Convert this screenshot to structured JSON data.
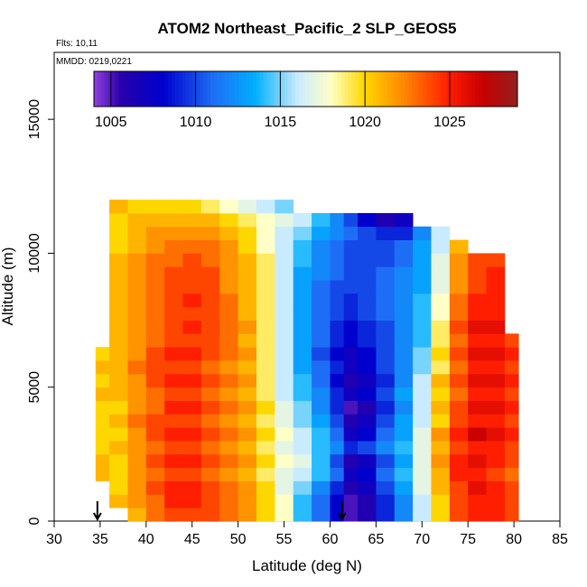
{
  "chart_data": {
    "type": "heatmap",
    "title": "ATOM2 Northeast_Pacific_2 SLP_GEOS5",
    "annotations": {
      "flights": "Flts: 10,11",
      "dates": "MMDD: 0219,0221"
    },
    "xlabel": "Latitude (deg N)",
    "ylabel": "Altitude (m)",
    "xlim": [
      30,
      85
    ],
    "ylim": [
      0,
      17500
    ],
    "xticks": [
      "30",
      "35",
      "40",
      "45",
      "50",
      "55",
      "60",
      "65",
      "70",
      "75",
      "80",
      "85"
    ],
    "yticks": [
      "0",
      "5000",
      "10000",
      "15000"
    ],
    "colorbar": {
      "range": [
        1004,
        1029
      ],
      "ticks": [
        "1005",
        "1010",
        "1015",
        "1020",
        "1025"
      ]
    },
    "arrows_at_latitude": [
      34.7,
      61.3
    ],
    "latitude_bins": [
      34.5,
      36,
      38,
      40,
      42,
      44,
      46,
      48,
      50,
      52,
      54,
      56,
      58,
      60,
      61.5,
      63,
      65,
      67,
      69,
      71,
      73,
      75,
      77,
      79,
      80.5
    ],
    "altitude_bins": [
      0,
      500,
      1000,
      1500,
      2000,
      2500,
      3000,
      3500,
      4000,
      4500,
      5000,
      5500,
      6000,
      6500,
      7000,
      7500,
      8000,
      8500,
      9000,
      9500,
      10000,
      10500,
      11000,
      11500,
      12000
    ],
    "slp_hpa_by_altitude_bin": [
      [
        null,
        null,
        1021,
        1023,
        1024,
        1024,
        1024,
        1023,
        1022,
        1020,
        1018,
        1014,
        1011,
        1008,
        1005,
        1006,
        1009,
        1012,
        1016,
        1020,
        1024,
        1025,
        1025,
        1024
      ],
      [
        null,
        1021,
        1022,
        1023,
        1025,
        1025,
        1024,
        1023,
        1022,
        1020,
        1018,
        1014,
        1011,
        1008,
        1005,
        1006,
        1009,
        1012,
        1016,
        1020,
        1024,
        1025,
        1025,
        1024
      ],
      [
        null,
        1020,
        1022,
        1024,
        1025,
        1025,
        1024,
        1023,
        1022,
        1020,
        1017,
        1015,
        1012,
        1009,
        1006,
        1007,
        1010,
        1013,
        1017,
        1021,
        1024,
        1026,
        1025,
        1024
      ],
      [
        1021,
        1020,
        1022,
        1023,
        1024,
        1024,
        1023,
        1022,
        1021,
        1019,
        1017,
        1016,
        1014,
        1011,
        1007,
        1008,
        1011,
        1014,
        1017,
        1021,
        1025,
        1025,
        1024,
        1023
      ],
      [
        1021,
        1020,
        1022,
        1024,
        1025,
        1025,
        1024,
        1023,
        1022,
        1020,
        1018,
        1017,
        1014,
        1010,
        1006,
        1007,
        1010,
        1013,
        1017,
        1022,
        1025,
        1026,
        1025,
        1024
      ],
      [
        1020,
        1021,
        1022,
        1023,
        1024,
        1024,
        1023,
        1022,
        1021,
        1019,
        1017,
        1016,
        1014,
        1012,
        1009,
        1010,
        1012,
        1014,
        1017,
        1021,
        1024,
        1025,
        1025,
        1024
      ],
      [
        1020,
        1020,
        1022,
        1024,
        1025,
        1025,
        1024,
        1023,
        1022,
        1020,
        1018,
        1016,
        1014,
        1011,
        1007,
        1008,
        1011,
        1013,
        1017,
        1022,
        1025,
        1027,
        1026,
        1025
      ],
      [
        1020,
        1021,
        1023,
        1024,
        1024,
        1024,
        1023,
        1022,
        1021,
        1019,
        1017,
        1015,
        1013,
        1010,
        1006,
        1007,
        1010,
        1013,
        1016,
        1020,
        1024,
        1025,
        1025,
        1024
      ],
      [
        1020,
        1020,
        1022,
        1023,
        1025,
        1025,
        1024,
        1023,
        1022,
        1020,
        1017,
        1015,
        1012,
        1009,
        1005,
        1006,
        1009,
        1012,
        1016,
        1021,
        1024,
        1026,
        1026,
        1025
      ],
      [
        1021,
        1021,
        1022,
        1023,
        1024,
        1024,
        1023,
        1022,
        1021,
        1019,
        1016,
        1014,
        1012,
        1009,
        1007,
        1008,
        1010,
        1013,
        1016,
        1020,
        1023,
        1025,
        1025,
        1024
      ],
      [
        1020,
        1021,
        1022,
        1024,
        1025,
        1025,
        1024,
        1023,
        1022,
        1019,
        1016,
        1014,
        1011,
        1008,
        1006,
        1007,
        1009,
        1012,
        1016,
        1021,
        1024,
        1026,
        1026,
        1025
      ],
      [
        1021,
        1021,
        1023,
        1024,
        1024,
        1024,
        1023,
        1022,
        1021,
        1019,
        1016,
        1013,
        1011,
        1009,
        1007,
        1008,
        1010,
        1012,
        1015,
        1019,
        1023,
        1025,
        1025,
        1024
      ],
      [
        1020,
        1021,
        1022,
        1024,
        1025,
        1025,
        1024,
        1023,
        1022,
        1019,
        1016,
        1013,
        1010,
        1008,
        1007,
        1008,
        1010,
        1012,
        1015,
        1020,
        1024,
        1026,
        1026,
        1025
      ],
      [
        null,
        1021,
        1022,
        1023,
        1024,
        1024,
        1024,
        1023,
        1021,
        1019,
        1016,
        1013,
        1011,
        1009,
        1008,
        1009,
        1010,
        1012,
        1014,
        1019,
        1023,
        1025,
        1025,
        1024
      ],
      [
        null,
        1021,
        1022,
        1023,
        1024,
        1025,
        1024,
        1023,
        1022,
        1019,
        1016,
        1013,
        1011,
        1009,
        1008,
        1009,
        1010,
        1012,
        1014,
        1019,
        1024,
        1026,
        1026,
        null
      ],
      [
        null,
        1021,
        1022,
        1023,
        1024,
        1024,
        1024,
        1023,
        1021,
        1019,
        1016,
        1013,
        1011,
        1010,
        1009,
        1010,
        1011,
        1012,
        1014,
        1018,
        1023,
        1025,
        1025,
        null
      ],
      [
        null,
        1021,
        1022,
        1023,
        1024,
        1025,
        1024,
        1023,
        1021,
        1019,
        1016,
        1013,
        1011,
        1010,
        1009,
        1010,
        1011,
        1012,
        1014,
        1018,
        1023,
        1025,
        1025,
        null
      ],
      [
        null,
        1021,
        1022,
        1023,
        1024,
        1024,
        1024,
        1022,
        1021,
        1019,
        1016,
        1013,
        1011,
        1010,
        1010,
        1010,
        1011,
        1012,
        1013,
        1017,
        1022,
        1024,
        1025,
        null
      ],
      [
        null,
        1021,
        1022,
        1023,
        1024,
        1024,
        1024,
        1022,
        1021,
        1019,
        1016,
        1013,
        1012,
        1011,
        1010,
        1010,
        1011,
        1012,
        1013,
        1017,
        1022,
        1024,
        1025,
        null
      ],
      [
        null,
        1021,
        1022,
        1023,
        1023,
        1024,
        1023,
        1022,
        1021,
        1019,
        1016,
        1014,
        1012,
        1011,
        1010,
        1010,
        1010,
        1011,
        1013,
        1017,
        1022,
        1024,
        1024,
        null
      ],
      [
        null,
        1020,
        1021,
        1022,
        1023,
        1023,
        1023,
        1022,
        1020,
        1018,
        1016,
        1014,
        1012,
        1011,
        1010,
        1010,
        1010,
        1011,
        1013,
        1016,
        1021,
        null,
        null,
        null
      ],
      [
        null,
        1020,
        1021,
        1022,
        1022,
        1022,
        1022,
        1021,
        1020,
        1018,
        1016,
        1015,
        1013,
        1012,
        1011,
        1010,
        1009,
        1009,
        1012,
        1016,
        null,
        null,
        null,
        null
      ],
      [
        null,
        1020,
        1021,
        1021,
        1021,
        1021,
        1021,
        1020,
        1019,
        1018,
        1017,
        1016,
        1014,
        1012,
        1010,
        1008,
        1006,
        1007,
        null,
        null,
        null,
        null,
        null,
        null
      ],
      [
        null,
        1021,
        1020,
        1020,
        1020,
        1020,
        1019,
        1018,
        1017,
        1016,
        1015,
        null,
        null,
        null,
        null,
        null,
        null,
        null,
        null,
        null,
        null,
        null,
        null,
        null
      ]
    ]
  }
}
